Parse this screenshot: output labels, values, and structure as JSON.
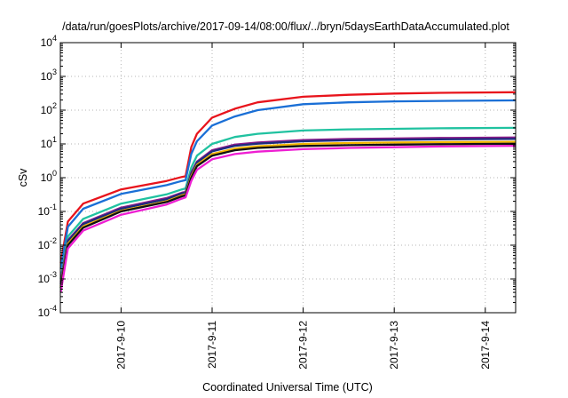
{
  "chart_data": {
    "type": "line",
    "title": "/data/run/goesPlots/archive/2017-09-14/08:00/flux/../bryn/5daysEarthDataAccumulated.plot",
    "xlabel": "Coordinated Universal Time (UTC)",
    "ylabel": "cSv",
    "y_scale": "log",
    "ylim": [
      0.0001,
      10000
    ],
    "y_ticks": [
      {
        "base": "10",
        "exp": "-4",
        "value": 0.0001
      },
      {
        "base": "10",
        "exp": "-3",
        "value": 0.001
      },
      {
        "base": "10",
        "exp": "-2",
        "value": 0.01
      },
      {
        "base": "10",
        "exp": "-1",
        "value": 0.1
      },
      {
        "base": "10",
        "exp": "0",
        "value": 1
      },
      {
        "base": "10",
        "exp": "1",
        "value": 10
      },
      {
        "base": "10",
        "exp": "2",
        "value": 100
      },
      {
        "base": "10",
        "exp": "3",
        "value": 1000
      },
      {
        "base": "10",
        "exp": "4",
        "value": 10000
      }
    ],
    "xlim": [
      "2017-09-09T08:00",
      "2017-09-14T08:00"
    ],
    "x_ticks": [
      "2017-9-10",
      "2017-9-11",
      "2017-9-12",
      "2017-9-13",
      "2017-9-14"
    ],
    "grid": true,
    "legend": "none",
    "series": [
      {
        "color": "#e8141c",
        "points": [
          [
            "2017-09-09T08:05",
            0.003
          ],
          [
            "2017-09-09T10:00",
            0.05
          ],
          [
            "2017-09-09T14:00",
            0.17
          ],
          [
            "2017-09-10T00:00",
            0.45
          ],
          [
            "2017-09-10T12:00",
            0.8
          ],
          [
            "2017-09-10T16:00",
            1.05
          ],
          [
            "2017-09-10T17:00",
            1.1
          ],
          [
            "2017-09-10T18:30",
            8
          ],
          [
            "2017-09-10T20:00",
            20
          ],
          [
            "2017-09-11T00:00",
            60
          ],
          [
            "2017-09-11T06:00",
            110
          ],
          [
            "2017-09-11T12:00",
            170
          ],
          [
            "2017-09-12T00:00",
            250
          ],
          [
            "2017-09-12T12:00",
            285
          ],
          [
            "2017-09-13T00:00",
            310
          ],
          [
            "2017-09-13T12:00",
            325
          ],
          [
            "2017-09-14T08:00",
            340
          ]
        ]
      },
      {
        "color": "#1a6fd6",
        "points": [
          [
            "2017-09-09T08:05",
            0.002
          ],
          [
            "2017-09-09T10:00",
            0.035
          ],
          [
            "2017-09-09T14:00",
            0.12
          ],
          [
            "2017-09-10T00:00",
            0.33
          ],
          [
            "2017-09-10T12:00",
            0.6
          ],
          [
            "2017-09-10T16:00",
            0.8
          ],
          [
            "2017-09-10T17:00",
            0.85
          ],
          [
            "2017-09-10T18:30",
            5
          ],
          [
            "2017-09-10T20:00",
            12
          ],
          [
            "2017-09-11T00:00",
            35
          ],
          [
            "2017-09-11T06:00",
            65
          ],
          [
            "2017-09-11T12:00",
            100
          ],
          [
            "2017-09-12T00:00",
            150
          ],
          [
            "2017-09-12T12:00",
            170
          ],
          [
            "2017-09-13T00:00",
            182
          ],
          [
            "2017-09-13T12:00",
            188
          ],
          [
            "2017-09-14T08:00",
            195
          ]
        ]
      },
      {
        "color": "#20c2a0",
        "points": [
          [
            "2017-09-09T08:05",
            0.001
          ],
          [
            "2017-09-09T10:00",
            0.018
          ],
          [
            "2017-09-09T14:00",
            0.06
          ],
          [
            "2017-09-10T00:00",
            0.17
          ],
          [
            "2017-09-10T12:00",
            0.32
          ],
          [
            "2017-09-10T16:00",
            0.45
          ],
          [
            "2017-09-10T17:00",
            0.48
          ],
          [
            "2017-09-10T18:30",
            2
          ],
          [
            "2017-09-10T20:00",
            4.5
          ],
          [
            "2017-09-11T00:00",
            10
          ],
          [
            "2017-09-11T06:00",
            16
          ],
          [
            "2017-09-11T12:00",
            20
          ],
          [
            "2017-09-12T00:00",
            25
          ],
          [
            "2017-09-12T12:00",
            27
          ],
          [
            "2017-09-13T00:00",
            28
          ],
          [
            "2017-09-13T12:00",
            29
          ],
          [
            "2017-09-14T08:00",
            30
          ]
        ]
      },
      {
        "color": "#8a1a8a",
        "points": [
          [
            "2017-09-09T08:05",
            0.0008
          ],
          [
            "2017-09-09T10:00",
            0.014
          ],
          [
            "2017-09-09T14:00",
            0.045
          ],
          [
            "2017-09-10T00:00",
            0.13
          ],
          [
            "2017-09-10T12:00",
            0.25
          ],
          [
            "2017-09-10T16:00",
            0.36
          ],
          [
            "2017-09-10T17:00",
            0.38
          ],
          [
            "2017-09-10T18:30",
            1.4
          ],
          [
            "2017-09-10T20:00",
            3
          ],
          [
            "2017-09-11T00:00",
            6.5
          ],
          [
            "2017-09-11T06:00",
            9.5
          ],
          [
            "2017-09-11T12:00",
            11
          ],
          [
            "2017-09-12T00:00",
            13
          ],
          [
            "2017-09-12T12:00",
            14
          ],
          [
            "2017-09-13T00:00",
            14.5
          ],
          [
            "2017-09-13T12:00",
            15
          ],
          [
            "2017-09-14T08:00",
            15.5
          ]
        ]
      },
      {
        "color": "#1c2c7e",
        "points": [
          [
            "2017-09-09T08:05",
            0.0007
          ],
          [
            "2017-09-09T10:00",
            0.013
          ],
          [
            "2017-09-09T14:00",
            0.042
          ],
          [
            "2017-09-10T00:00",
            0.12
          ],
          [
            "2017-09-10T12:00",
            0.23
          ],
          [
            "2017-09-10T16:00",
            0.34
          ],
          [
            "2017-09-10T17:00",
            0.36
          ],
          [
            "2017-09-10T18:30",
            1.3
          ],
          [
            "2017-09-10T20:00",
            2.8
          ],
          [
            "2017-09-11T00:00",
            6
          ],
          [
            "2017-09-11T06:00",
            8.8
          ],
          [
            "2017-09-11T12:00",
            10.2
          ],
          [
            "2017-09-12T00:00",
            12
          ],
          [
            "2017-09-12T12:00",
            12.8
          ],
          [
            "2017-09-13T00:00",
            13.3
          ],
          [
            "2017-09-13T12:00",
            13.7
          ],
          [
            "2017-09-14T08:00",
            14
          ]
        ]
      },
      {
        "color": "#f2b300",
        "points": [
          [
            "2017-09-09T08:05",
            0.0006
          ],
          [
            "2017-09-09T10:00",
            0.011
          ],
          [
            "2017-09-09T14:00",
            0.036
          ],
          [
            "2017-09-10T00:00",
            0.105
          ],
          [
            "2017-09-10T12:00",
            0.2
          ],
          [
            "2017-09-10T16:00",
            0.3
          ],
          [
            "2017-09-10T17:00",
            0.32
          ],
          [
            "2017-09-10T18:30",
            1.1
          ],
          [
            "2017-09-10T20:00",
            2.4
          ],
          [
            "2017-09-11T00:00",
            5
          ],
          [
            "2017-09-11T06:00",
            7.3
          ],
          [
            "2017-09-11T12:00",
            8.5
          ],
          [
            "2017-09-12T00:00",
            10
          ],
          [
            "2017-09-12T12:00",
            10.6
          ],
          [
            "2017-09-13T00:00",
            11
          ],
          [
            "2017-09-13T12:00",
            11.3
          ],
          [
            "2017-09-14T08:00",
            11.6
          ]
        ]
      },
      {
        "color": "#111111",
        "points": [
          [
            "2017-09-09T08:05",
            0.00055
          ],
          [
            "2017-09-09T10:00",
            0.01
          ],
          [
            "2017-09-09T14:00",
            0.033
          ],
          [
            "2017-09-10T00:00",
            0.1
          ],
          [
            "2017-09-10T12:00",
            0.19
          ],
          [
            "2017-09-10T16:00",
            0.28
          ],
          [
            "2017-09-10T17:00",
            0.3
          ],
          [
            "2017-09-10T18:30",
            1
          ],
          [
            "2017-09-10T20:00",
            2.2
          ],
          [
            "2017-09-11T00:00",
            4.5
          ],
          [
            "2017-09-11T06:00",
            6.5
          ],
          [
            "2017-09-11T12:00",
            7.6
          ],
          [
            "2017-09-12T00:00",
            8.7
          ],
          [
            "2017-09-12T12:00",
            9.2
          ],
          [
            "2017-09-13T00:00",
            9.5
          ],
          [
            "2017-09-13T12:00",
            9.8
          ],
          [
            "2017-09-14T08:00",
            10.1
          ]
        ]
      },
      {
        "color": "#ee1ed2",
        "points": [
          [
            "2017-09-09T08:05",
            0.0004
          ],
          [
            "2017-09-09T10:00",
            0.008
          ],
          [
            "2017-09-09T14:00",
            0.027
          ],
          [
            "2017-09-10T00:00",
            0.08
          ],
          [
            "2017-09-10T12:00",
            0.16
          ],
          [
            "2017-09-10T16:00",
            0.24
          ],
          [
            "2017-09-10T17:00",
            0.26
          ],
          [
            "2017-09-10T18:30",
            0.8
          ],
          [
            "2017-09-10T20:00",
            1.7
          ],
          [
            "2017-09-11T00:00",
            3.5
          ],
          [
            "2017-09-11T06:00",
            5
          ],
          [
            "2017-09-11T12:00",
            5.9
          ],
          [
            "2017-09-12T00:00",
            7
          ],
          [
            "2017-09-12T12:00",
            7.6
          ],
          [
            "2017-09-13T00:00",
            8
          ],
          [
            "2017-09-13T12:00",
            8.4
          ],
          [
            "2017-09-14T08:00",
            8.8
          ]
        ]
      }
    ]
  }
}
